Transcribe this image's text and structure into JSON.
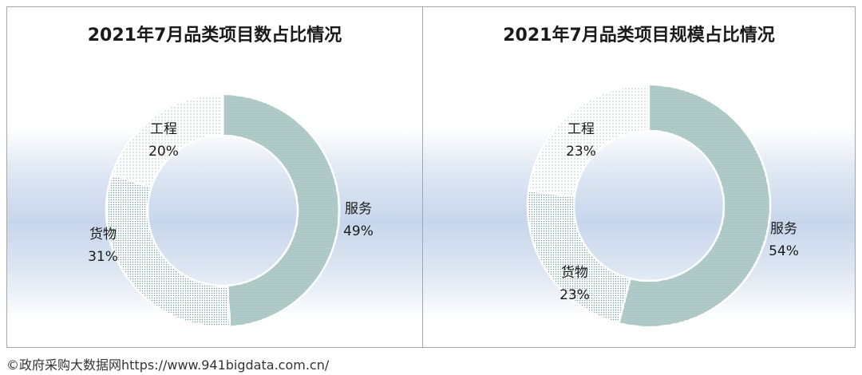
{
  "chart_data": [
    {
      "type": "pie",
      "title": "2021年7月品类项目数占比情况",
      "slices": [
        {
          "label": "服务",
          "value": 49,
          "value_label": "49%",
          "pattern": "dense"
        },
        {
          "label": "货物",
          "value": 31,
          "value_label": "31%",
          "pattern": "medium"
        },
        {
          "label": "工程",
          "value": 20,
          "value_label": "20%",
          "pattern": "sparse"
        }
      ]
    },
    {
      "type": "pie",
      "title": "2021年7月品类项目规模占比情况",
      "slices": [
        {
          "label": "服务",
          "value": 54,
          "value_label": "54%",
          "pattern": "dense"
        },
        {
          "label": "货物",
          "value": 23,
          "value_label": "23%",
          "pattern": "medium"
        },
        {
          "label": "工程",
          "value": 23,
          "value_label": "23%",
          "pattern": "sparse"
        }
      ]
    }
  ],
  "colors": {
    "dense": "#3f7f7a",
    "medium": "#6f9f9b",
    "sparse": "#a7c3c0"
  },
  "watermark": "©政府采购大数据网https://www.941bigdata.com.cn/"
}
